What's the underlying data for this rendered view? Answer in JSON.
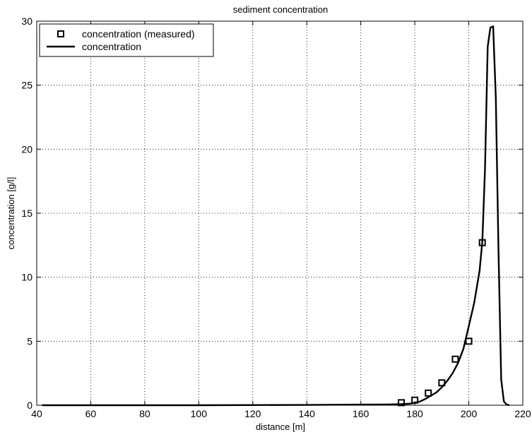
{
  "chart_data": {
    "type": "line",
    "title": "sediment concentration",
    "xlabel": "distance [m]",
    "ylabel": "concentration [g/l]",
    "xlim": [
      40,
      220
    ],
    "ylim": [
      0,
      30
    ],
    "xticks": [
      40,
      60,
      80,
      100,
      120,
      140,
      160,
      180,
      200,
      220
    ],
    "yticks": [
      0,
      5,
      10,
      15,
      20,
      25,
      30
    ],
    "grid": true,
    "legend_position": "top-left",
    "series": [
      {
        "name": "concentration (measured)",
        "style": "markers",
        "marker": "square",
        "x": [
          175,
          180,
          185,
          190,
          195,
          200,
          205
        ],
        "y": [
          0.2,
          0.4,
          0.95,
          1.75,
          3.6,
          5.0,
          12.7
        ]
      },
      {
        "name": "concentration",
        "style": "line",
        "x": [
          42,
          100,
          140,
          160,
          170,
          175,
          178,
          180,
          182,
          184,
          186,
          188,
          190,
          192,
          194,
          196,
          198,
          200,
          202,
          204,
          205,
          206,
          207,
          208,
          209,
          210,
          211,
          212,
          213,
          214,
          215
        ],
        "y": [
          0.0,
          0.0,
          0.02,
          0.05,
          0.06,
          0.08,
          0.12,
          0.18,
          0.3,
          0.5,
          0.75,
          1.0,
          1.4,
          1.9,
          2.5,
          3.3,
          4.4,
          6.2,
          8.0,
          10.5,
          12.8,
          18.5,
          28.0,
          29.5,
          29.6,
          24.0,
          12.0,
          2.0,
          0.3,
          0.05,
          0.0
        ]
      }
    ]
  }
}
